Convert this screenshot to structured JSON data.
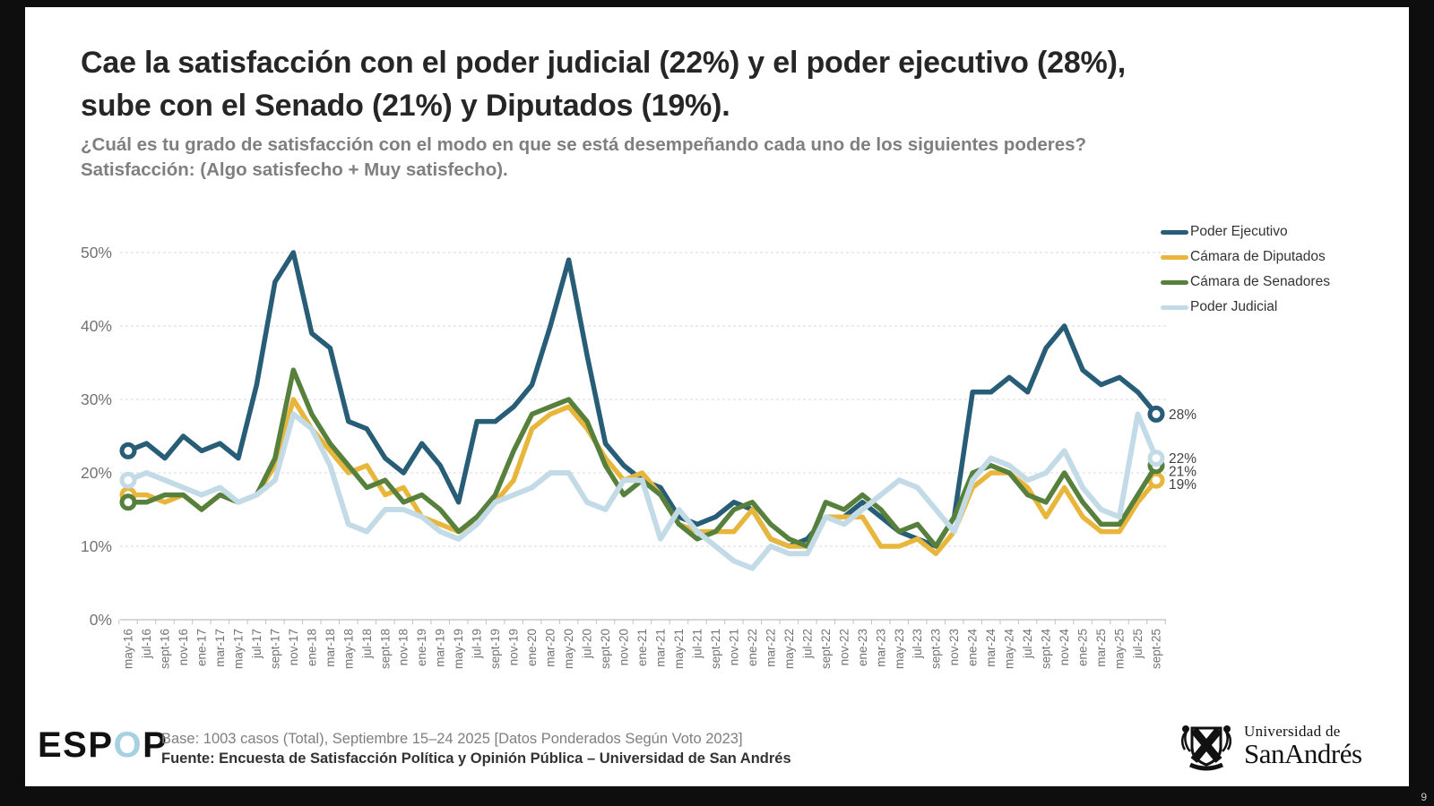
{
  "header": {
    "title_line1": "Cae la satisfacción con el poder judicial (22%) y el poder ejecutivo (28%),",
    "title_line2": "sube con el Senado (21%) y Diputados (19%).",
    "subtitle_line1": "¿Cuál es tu grado de satisfacción con el modo en que se está desempeñando cada uno de los siguientes poderes?",
    "subtitle_line2": "Satisfacción: (Algo satisfecho + Muy satisfecho)."
  },
  "chart_data": {
    "type": "line",
    "grid": "horizontal-dashed",
    "legend_position": "top-right",
    "ylim": [
      0,
      50
    ],
    "y_ticks": [
      "0%",
      "10%",
      "20%",
      "30%",
      "40%",
      "50%"
    ],
    "categories": [
      "may-16",
      "jul-16",
      "sept-16",
      "nov-16",
      "ene-17",
      "mar-17",
      "may-17",
      "jul-17",
      "sept-17",
      "nov-17",
      "ene-18",
      "mar-18",
      "may-18",
      "jul-18",
      "sept-18",
      "nov-18",
      "ene-19",
      "mar-19",
      "may-19",
      "jul-19",
      "sept-19",
      "nov-19",
      "ene-20",
      "mar-20",
      "may-20",
      "jul-20",
      "sept-20",
      "nov-20",
      "ene-21",
      "mar-21",
      "may-21",
      "jul-21",
      "sept-21",
      "nov-21",
      "ene-22",
      "mar-22",
      "may-22",
      "jul-22",
      "sept-22",
      "nov-22",
      "ene-23",
      "mar-23",
      "may-23",
      "jul-23",
      "sept-23",
      "nov-23",
      "ene-24",
      "mar-24",
      "may-24",
      "jul-24",
      "sept-24",
      "nov-24",
      "ene-25",
      "mar-25",
      "may-25",
      "jul-25",
      "sept-25"
    ],
    "series": [
      {
        "name": "Poder Ejecutivo",
        "color": "#275d77",
        "end_label": "28%",
        "values": [
          23,
          24,
          22,
          25,
          23,
          24,
          22,
          32,
          46,
          50,
          39,
          37,
          27,
          26,
          22,
          20,
          24,
          21,
          16,
          27,
          27,
          29,
          32,
          40,
          49,
          36,
          24,
          21,
          19,
          18,
          14,
          13,
          14,
          16,
          15,
          11,
          10,
          11,
          14,
          14,
          16,
          14,
          12,
          11,
          10,
          14,
          31,
          31,
          33,
          31,
          37,
          40,
          34,
          32,
          33,
          31,
          28
        ]
      },
      {
        "name": "Cámara de Diputados",
        "color": "#e9b63c",
        "end_label": "19%",
        "values": [
          17,
          17,
          16,
          17,
          15,
          17,
          16,
          17,
          21,
          30,
          26,
          23,
          20,
          21,
          17,
          18,
          14,
          13,
          12,
          13,
          16,
          19,
          26,
          28,
          29,
          26,
          22,
          19,
          20,
          17,
          13,
          12,
          12,
          12,
          15,
          11,
          10,
          10,
          14,
          14,
          14,
          10,
          10,
          11,
          9,
          12,
          18,
          20,
          20,
          18,
          14,
          18,
          14,
          12,
          12,
          16,
          19
        ]
      },
      {
        "name": "Cámara de Senadores",
        "color": "#57803d",
        "end_label": "21%",
        "values": [
          16,
          16,
          17,
          17,
          15,
          17,
          16,
          17,
          22,
          34,
          28,
          24,
          21,
          18,
          19,
          16,
          17,
          15,
          12,
          14,
          17,
          23,
          28,
          29,
          30,
          27,
          21,
          17,
          19,
          17,
          13,
          11,
          12,
          15,
          16,
          13,
          11,
          10,
          16,
          15,
          17,
          15,
          12,
          13,
          10,
          14,
          20,
          21,
          20,
          17,
          16,
          20,
          16,
          13,
          13,
          17,
          21
        ]
      },
      {
        "name": "Poder Judicial",
        "color": "#c2dbe7",
        "end_label": "22%",
        "values": [
          19,
          20,
          19,
          18,
          17,
          18,
          16,
          17,
          19,
          28,
          26,
          21,
          13,
          12,
          15,
          15,
          14,
          12,
          11,
          13,
          16,
          17,
          18,
          20,
          20,
          16,
          15,
          19,
          19,
          11,
          15,
          12,
          10,
          8,
          7,
          10,
          9,
          9,
          14,
          13,
          15,
          17,
          19,
          18,
          15,
          12,
          19,
          22,
          21,
          19,
          20,
          23,
          18,
          15,
          14,
          28,
          22
        ]
      }
    ]
  },
  "footer": {
    "base": "Base: 1003 casos (Total), Septiembre 15–24 2025 [Datos Ponderados Según Voto 2023]",
    "fuente": "Fuente: Encuesta de Satisfacción Política y Opinión Pública – Universidad de San Andrés",
    "logo_prefix": "ESP",
    "logo_accent": "O",
    "logo_suffix": "P",
    "logo_accent_color": "#a7d0e0"
  },
  "university": {
    "line1": "Universidad de",
    "line2": "SanAndrés"
  },
  "page_number": "9"
}
